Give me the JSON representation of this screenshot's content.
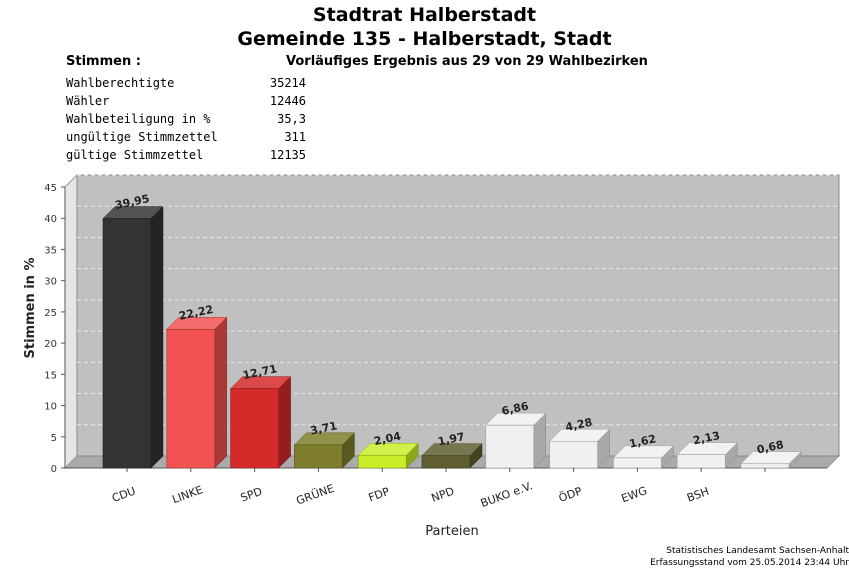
{
  "header": {
    "title": "Stadtrat Halberstadt",
    "subtitle": "Gemeinde 135 - Halberstadt, Stadt",
    "stimmen_label": "Stimmen  :",
    "result_status": "Vorläufiges Ergebnis aus 29 von 29 Wahlbezirken"
  },
  "stats": [
    {
      "label": "Wahlberechtigte",
      "value": "35214"
    },
    {
      "label": "Wähler",
      "value": "12446"
    },
    {
      "label": "Wahlbeteiligung in %",
      "value": "35,3"
    },
    {
      "label": "ungültige Stimmzettel",
      "value": "311"
    },
    {
      "label": "gültige Stimmzettel",
      "value": "12135"
    }
  ],
  "chart_data": {
    "type": "bar",
    "categories": [
      "CDU",
      "LINKE",
      "SPD",
      "GRÜNE",
      "FDP",
      "NPD",
      "BUKO e.V.",
      "ÖDP",
      "EWG",
      "BSH",
      ""
    ],
    "values": [
      39.95,
      22.22,
      12.71,
      3.71,
      2.04,
      1.97,
      6.86,
      4.28,
      1.62,
      2.13,
      0.68
    ],
    "value_labels": [
      "39,95",
      "22,22",
      "12,71",
      "3,71",
      "2,04",
      "1,97",
      "6,86",
      "4,28",
      "1,62",
      "2,13",
      "0,68"
    ],
    "colors": [
      "#333333",
      "#f25252",
      "#d42a2a",
      "#7e7e2c",
      "#c8ee2a",
      "#5e5e30",
      "#f0f0f0",
      "#f0f0f0",
      "#f0f0f0",
      "#f0f0f0",
      "#f0f0f0"
    ],
    "xlabel": "Parteien",
    "ylabel": "Stimmen in %",
    "ylim": [
      0,
      45
    ],
    "yticks": [
      "0",
      "5",
      "10",
      "15",
      "20",
      "25",
      "30",
      "35",
      "40",
      "45"
    ],
    "plot_background": "#c0c0c0",
    "grid": true
  },
  "footer": {
    "line1": "Statistisches Landesamt Sachsen-Anhalt",
    "line2": "Erfassungsstand vom 25.05.2014 23:44 Uhr"
  }
}
